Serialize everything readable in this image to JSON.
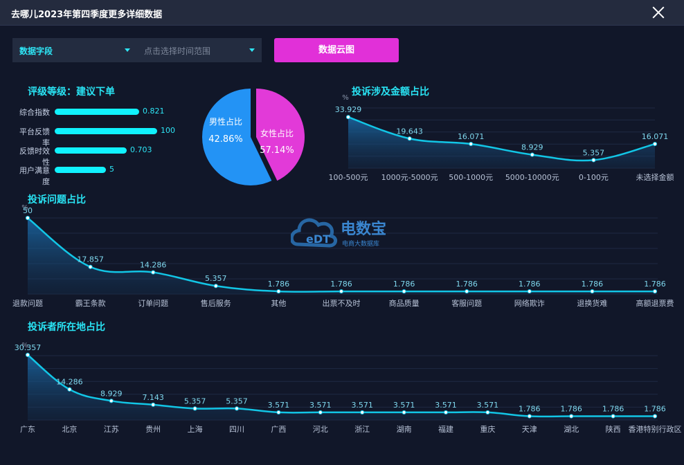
{
  "header": {
    "title": "去哪儿2023年第四季度更多详细数据"
  },
  "controls": {
    "field_label": "数据字段",
    "time_placeholder": "点击选择时间范围",
    "cloud_button": "数据云图"
  },
  "rating": {
    "title": "评级等级：建议下单",
    "items": [
      {
        "label": "综合指数",
        "value": "0.821",
        "fraction": 0.821
      },
      {
        "label": "平台反馈率",
        "value": "100",
        "fraction": 1.0
      },
      {
        "label": "反馈时效性",
        "value": "0.703",
        "fraction": 0.703
      },
      {
        "label": "用户满意度",
        "value": "5",
        "fraction": 0.5
      }
    ]
  },
  "gender": {
    "male_label": "男性占比",
    "male_value": "42.86%",
    "female_label": "女性占比",
    "female_value": "57.14%",
    "colors": {
      "male": "#2393f5",
      "female": "#e23ad8"
    }
  },
  "watermark": {
    "name": "电数宝",
    "sub": "电商大数据库",
    "logo": "eDT"
  },
  "chart_data": [
    {
      "type": "area",
      "title": "投诉涉及金额占比",
      "ylabel": "%",
      "categories": [
        "100-500元",
        "1000元-5000元",
        "500-1000元",
        "5000-10000元",
        "0-100元",
        "未选择金额"
      ],
      "values": [
        33.929,
        19.643,
        16.071,
        8.929,
        5.357,
        16.071
      ],
      "value_labels": [
        "33.929",
        "19.643",
        "16.071",
        "8.929",
        "5.357",
        "16.071"
      ],
      "ylim": [
        0,
        40
      ],
      "grid": true
    },
    {
      "type": "area",
      "title": "投诉问题占比",
      "ylabel": "%",
      "categories": [
        "退款问题",
        "霸王条款",
        "订单问题",
        "售后服务",
        "其他",
        "出票不及时",
        "商品质量",
        "客服问题",
        "网络欺诈",
        "退换货难",
        "高额退票费"
      ],
      "values": [
        50,
        17.857,
        14.286,
        5.357,
        1.786,
        1.786,
        1.786,
        1.786,
        1.786,
        1.786,
        1.786
      ],
      "value_labels": [
        "50",
        "17.857",
        "14.286",
        "5.357",
        "1.786",
        "1.786",
        "1.786",
        "1.786",
        "1.786",
        "1.786",
        "1.786"
      ],
      "ylim": [
        0,
        50
      ],
      "grid": true
    },
    {
      "type": "area",
      "title": "投诉者所在地占比",
      "ylabel": "%",
      "categories": [
        "广东",
        "北京",
        "江苏",
        "贵州",
        "上海",
        "四川",
        "广西",
        "河北",
        "浙江",
        "湖南",
        "福建",
        "重庆",
        "天津",
        "湖北",
        "陕西",
        "香港特别行政区"
      ],
      "values": [
        30.357,
        14.286,
        8.929,
        7.143,
        5.357,
        5.357,
        3.571,
        3.571,
        3.571,
        3.571,
        3.571,
        3.571,
        1.786,
        1.786,
        1.786,
        1.786
      ],
      "value_labels": [
        "30.357",
        "14.286",
        "8.929",
        "7.143",
        "5.357",
        "5.357",
        "3.571",
        "3.571",
        "3.571",
        "3.571",
        "3.571",
        "3.571",
        "1.786",
        "1.786",
        "1.786",
        "1.786"
      ],
      "ylim": [
        0,
        30
      ],
      "grid": true
    }
  ]
}
